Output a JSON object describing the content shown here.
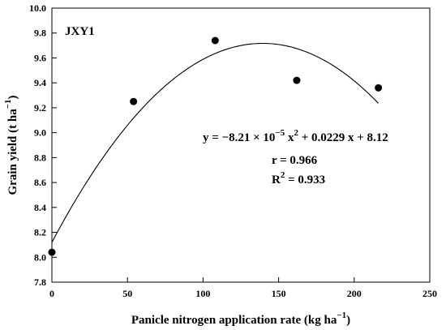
{
  "chart_data": {
    "type": "scatter",
    "panel_label": "JXY1",
    "xlabel": {
      "text": "Panicle nitrogen application rate (kg ha",
      "sup": "−1",
      "close": ")"
    },
    "ylabel": {
      "text": "Grain yield (t ha",
      "sup": "−1",
      "close": ")"
    },
    "xlim": [
      0,
      250
    ],
    "ylim": [
      7.8,
      10.0
    ],
    "x_ticks": [
      "0",
      "50",
      "100",
      "150",
      "200",
      "250"
    ],
    "y_ticks": [
      "7.8",
      "8.0",
      "8.2",
      "8.4",
      "8.6",
      "8.8",
      "9.0",
      "9.2",
      "9.4",
      "9.6",
      "9.8",
      "10.0"
    ],
    "points": [
      {
        "x": 0,
        "y": 8.04
      },
      {
        "x": 54,
        "y": 9.25
      },
      {
        "x": 108,
        "y": 9.74
      },
      {
        "x": 162,
        "y": 9.42
      },
      {
        "x": 216,
        "y": 9.36
      }
    ],
    "fit": {
      "a": -8.21e-05,
      "b": 0.0229,
      "c": 8.12,
      "x_range": [
        0,
        216
      ]
    },
    "equation": {
      "lhs": "y = −8.21 ×  10",
      "exp1": "−5",
      "mid": " x",
      "exp2": "2",
      "rhs": " + 0.0229 x + 8.12"
    },
    "r_text": "r = 0.966",
    "r2": {
      "base": "R",
      "sup": "2",
      "rest": " = 0.933"
    }
  }
}
